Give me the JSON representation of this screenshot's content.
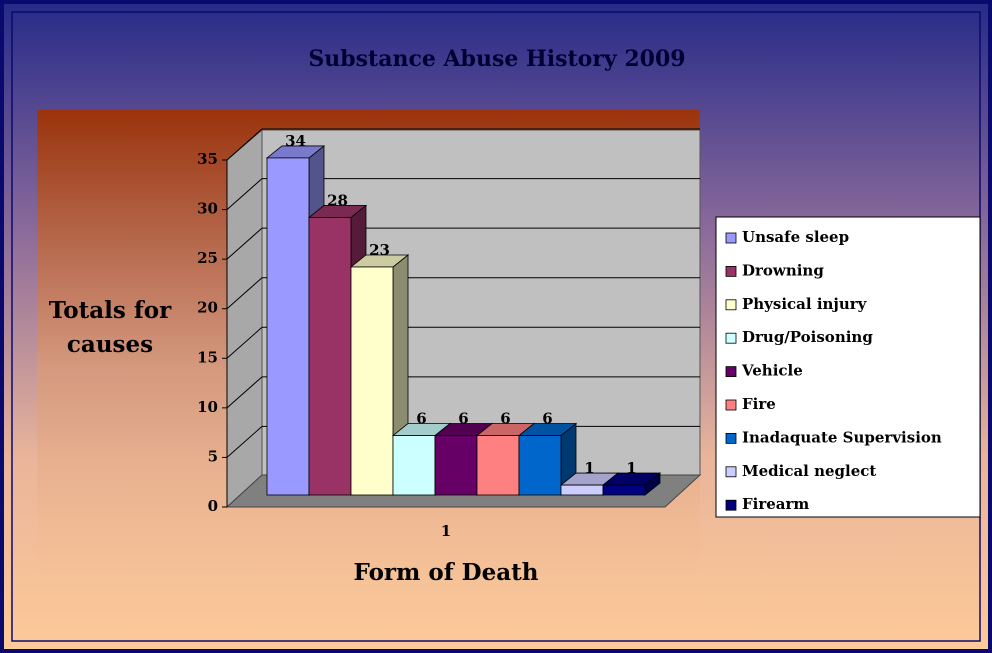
{
  "chart_data": {
    "type": "bar",
    "title": "Substance Abuse History 2009",
    "y_label": "Totals for causes",
    "x_label": "Form of Death",
    "categories": [
      "1"
    ],
    "series": [
      {
        "name": "Unsafe sleep",
        "color": "#9999ff",
        "values": [
          34
        ]
      },
      {
        "name": "Drowning",
        "color": "#993366",
        "values": [
          28
        ]
      },
      {
        "name": "Physical injury",
        "color": "#ffffcc",
        "values": [
          23
        ]
      },
      {
        "name": "Drug/Poisoning",
        "color": "#ccffff",
        "values": [
          6
        ]
      },
      {
        "name": "Vehicle",
        "color": "#660066",
        "values": [
          6
        ]
      },
      {
        "name": "Fire",
        "color": "#ff8080",
        "values": [
          6
        ]
      },
      {
        "name": "Inadaquate Supervision",
        "color": "#0066cc",
        "values": [
          6
        ]
      },
      {
        "name": "Medical neglect",
        "color": "#ccccff",
        "values": [
          1
        ]
      },
      {
        "name": "Firearm",
        "color": "#000080",
        "values": [
          1
        ]
      }
    ],
    "ylim": [
      0,
      35
    ],
    "yticks": [
      0,
      5,
      10,
      15,
      20,
      25,
      30,
      35
    ],
    "grid": true,
    "legend": "right"
  }
}
